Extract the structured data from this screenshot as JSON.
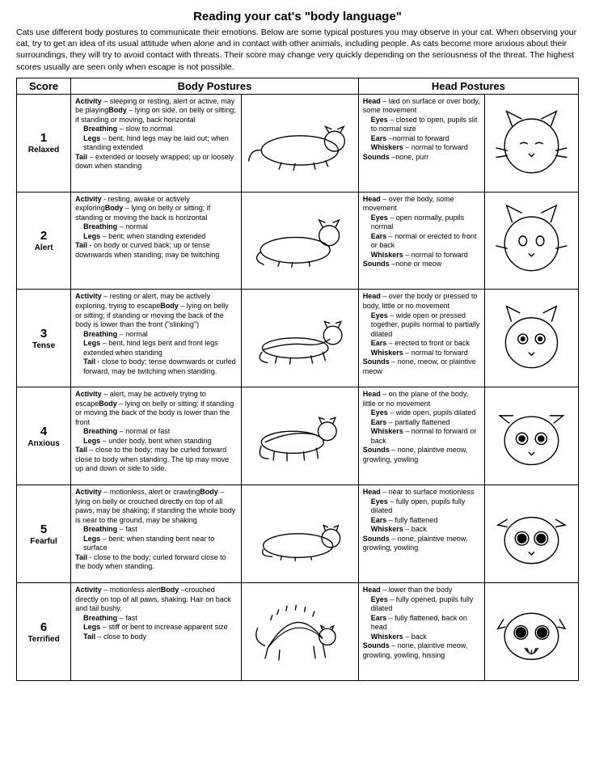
{
  "title": "Reading your cat's \"body language\"",
  "intro": "Cats use different body postures to communicate their emotions.  Below are some typical postures you may observe in your cat. When observing your cat, try to get an idea of its usual attitude when alone and in contact with other animals, including people. As cats become more anxious about their surroundings, they will try to avoid contact with threats.  Their score may change very quickly depending on the seriousness of the threat.  The highest scores usually are seen only when escape is not possible.",
  "headers": {
    "score": "Score",
    "body": "Body Postures",
    "head": "Head Postures"
  },
  "rows": [
    {
      "num": "1",
      "label": "Relaxed",
      "body": [
        {
          "k": "Activity",
          "v": " – sleeping or resting, alert or active, may be playing"
        },
        {
          "k": "Body",
          "v": " – lying on side, on belly or sitting; if standing or moving, back horizontal"
        },
        {
          "k": "Breathing",
          "v": " – slow to normal",
          "ind": true
        },
        {
          "k": "Legs",
          "v": " – bent, hind legs may be laid out; when standing extended",
          "ind": true
        },
        {
          "k": "Tail",
          "v": " – extended or loosely wrapped; up or loosely down when standing"
        }
      ],
      "head": [
        {
          "k": "Head",
          "v": " – laid on surface or over body, some movement"
        },
        {
          "k": "Eyes",
          "v": " – closed to open, pupils slit to normal size",
          "ind": true
        },
        {
          "k": "Ears",
          "v": " –normal to forward",
          "ind": true
        },
        {
          "k": "Whiskers",
          "v": " – normal to forward",
          "ind": true
        },
        {
          "k": "Sounds",
          "v": " –none, purr"
        }
      ]
    },
    {
      "num": "2",
      "label": "Alert",
      "body": [
        {
          "k": "Activity",
          "v": " - resting, awake or actively exploring"
        },
        {
          "k": "Body",
          "v": " – lying on belly or sitting; if standing or moving the back is horizontal"
        },
        {
          "k": "Breathing",
          "v": " – normal",
          "ind": true
        },
        {
          "k": "Legs",
          "v": " – bent; when standing extended",
          "ind": true
        },
        {
          "k": "Tail",
          "v": " - on body or curved back; up or tense downwards when standing; may be twitching"
        }
      ],
      "head": [
        {
          "k": "Head",
          "v": " – over the body, some movement"
        },
        {
          "k": "Eyes",
          "v": " – open normally, pupils normal",
          "ind": true
        },
        {
          "k": "Ears",
          "v": " – normal or erected to front or back",
          "ind": true
        },
        {
          "k": "Whiskers",
          "v": " – normal to forward",
          "ind": true
        },
        {
          "k": "Sounds",
          "v": " –none or meow"
        }
      ]
    },
    {
      "num": "3",
      "label": "Tense",
      "body": [
        {
          "k": "Activity",
          "v": " – resting or alert, may be actively exploring, trying to escape"
        },
        {
          "k": "Body",
          "v": " – lying on belly or sitting; if standing or moving the back of the body is lower than the front (\"slinking\")"
        },
        {
          "k": "Breathing",
          "v": " – normal",
          "ind": true
        },
        {
          "k": "Legs",
          "v": " – bent, hind legs bent and front legs extended when standing",
          "ind": true
        },
        {
          "k": "Tail",
          "v": " - close to body; tense downwards or curled forward, may be twitching when standing.",
          "ind": true
        }
      ],
      "head": [
        {
          "k": "Head",
          "v": " – over the body or pressed to body, little or no movement"
        },
        {
          "k": "Eyes",
          "v": " – wide open or pressed together, pupils normal to partially dilated",
          "ind": true
        },
        {
          "k": "Ears",
          "v": " – erected to front or back",
          "ind": true
        },
        {
          "k": "Whiskers",
          "v": " – normal to forward",
          "ind": true
        },
        {
          "k": "Sounds",
          "v": " – none, meow, or plaintive meow"
        }
      ]
    },
    {
      "num": "4",
      "label": "Anxious",
      "body": [
        {
          "k": "Activity",
          "v": " – alert, may be actively trying to escape"
        },
        {
          "k": "Body",
          "v": " – lying on belly or sitting; if standing or moving the back of the body is lower than the front"
        },
        {
          "k": "Breathing",
          "v": " – normal or fast",
          "ind": true
        },
        {
          "k": "Legs",
          "v": " – under body, bent when standing",
          "ind": true
        },
        {
          "k": "Tail",
          "v": " – close to the body; may be curled forward close to body when standing. The tip may move up and down or side to side."
        }
      ],
      "head": [
        {
          "k": "Head",
          "v": " – on the plane of the body, little or no movement"
        },
        {
          "k": "Eyes",
          "v": " – wide open, pupils dilated",
          "ind": true
        },
        {
          "k": "Ears",
          "v": " – partially flattened",
          "ind": true
        },
        {
          "k": "Whiskers",
          "v": " – normal to forward or back",
          "ind": true
        },
        {
          "k": "Sounds",
          "v": " – none, plaintive meow, growling, yowling"
        }
      ]
    },
    {
      "num": "5",
      "label": "Fearful",
      "body": [
        {
          "k": "Activity",
          "v": " – motionless, alert or crawling"
        },
        {
          "k": "Body",
          "v": " – lying on belly or crouched directly on top of all paws, may be shaking; if standing the whole body is near to the ground, may be shaking"
        },
        {
          "k": "Breathing",
          "v": " – fast",
          "ind": true
        },
        {
          "k": "Legs",
          "v": " – bent; when standing bent near to surface",
          "ind": true
        },
        {
          "k": "Tail",
          "v": " - close to the body; curled forward close to the body when standing."
        }
      ],
      "head": [
        {
          "k": "Head",
          "v": " – near to surface motionless"
        },
        {
          "k": "Eyes",
          "v": " – fully open, pupils fully dilated",
          "ind": true
        },
        {
          "k": "Ears",
          "v": " – fully flattened",
          "ind": true
        },
        {
          "k": "Whiskers",
          "v": " – back",
          "ind": true
        },
        {
          "k": "Sounds",
          "v": " – none, plaintive meow, growling, yowling"
        }
      ]
    },
    {
      "num": "6",
      "label": "Terrified",
      "body": [
        {
          "k": "Activity",
          "v": " – motionless alert"
        },
        {
          "k": "Body",
          "v": " –crouched directly on top of all paws, shaking. Hair on back and tail bushy."
        },
        {
          "k": "Breathing",
          "v": " – fast",
          "ind": true
        },
        {
          "k": "Legs",
          "v": " – stiff or bent to increase apparent size",
          "ind": true
        },
        {
          "k": "Tail",
          "v": " – close to body",
          "ind": true
        }
      ],
      "head": [
        {
          "k": "Head",
          "v": " – lower than the body"
        },
        {
          "k": "Eyes",
          "v": " – fully opened, pupils fully dilated",
          "ind": true
        },
        {
          "k": "Ears",
          "v": " – fully flattened, back on head",
          "ind": true
        },
        {
          "k": "Whiskers",
          "v": " – back",
          "ind": true
        },
        {
          "k": "Sounds",
          "v": " – none, plaintive meow, growling, yowling, hissing"
        }
      ]
    }
  ]
}
